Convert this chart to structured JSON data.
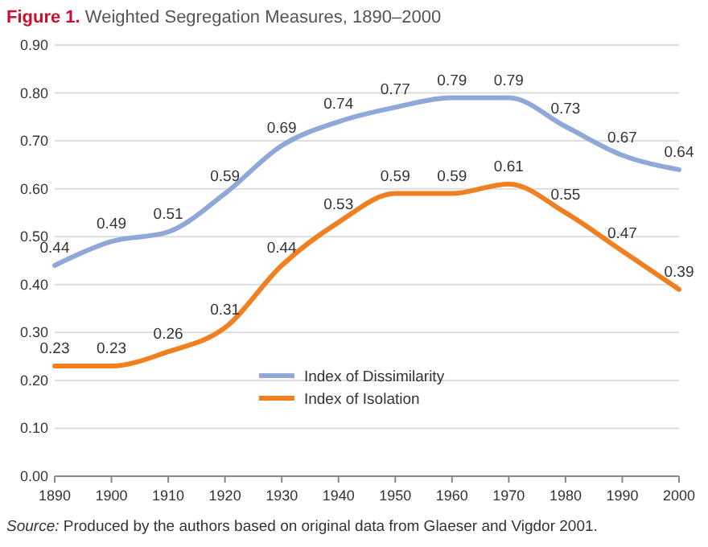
{
  "chart_data": {
    "type": "line",
    "title": "Figure 1. Weighted Segregation Measures, 1890–2000",
    "x": [
      1890,
      1900,
      1910,
      1920,
      1930,
      1940,
      1950,
      1960,
      1970,
      1980,
      1990,
      2000
    ],
    "series": [
      {
        "name": "Index of Dissimilarity",
        "color": "#8fa8d8",
        "values": [
          0.44,
          0.49,
          0.51,
          0.59,
          0.69,
          0.74,
          0.77,
          0.79,
          0.79,
          0.73,
          0.67,
          0.64
        ]
      },
      {
        "name": "Index of Isolation",
        "color": "#f07f1f",
        "values": [
          0.23,
          0.23,
          0.26,
          0.31,
          0.44,
          0.53,
          0.59,
          0.59,
          0.61,
          0.55,
          0.47,
          0.39
        ]
      }
    ],
    "xlim": [
      1890,
      2000
    ],
    "xticks": [
      1890,
      1900,
      1910,
      1920,
      1930,
      1940,
      1950,
      1960,
      1970,
      1980,
      1990,
      2000
    ],
    "ylim": [
      0,
      0.9
    ],
    "yticks": [
      {
        "value": 0,
        "label": "0.00"
      },
      {
        "value": 0.1,
        "label": "0.10"
      },
      {
        "value": 0.2,
        "label": "0.20"
      },
      {
        "value": 0.3,
        "label": "0.30"
      },
      {
        "value": 0.4,
        "label": "0.40"
      },
      {
        "value": 0.5,
        "label": "0.50"
      },
      {
        "value": 0.6,
        "label": "0.60"
      },
      {
        "value": 0.7,
        "label": "0.70"
      },
      {
        "value": 0.8,
        "label": "0.80"
      },
      {
        "value": 0.9,
        "label": "0.90"
      }
    ],
    "grid": "y",
    "legend": "bottom right",
    "data_labels": true,
    "marker": "none",
    "line_style": "solid",
    "annotations": [
      "Source: Produced by the authors based on original data from Glaeser and Vigdor 2001."
    ]
  }
}
